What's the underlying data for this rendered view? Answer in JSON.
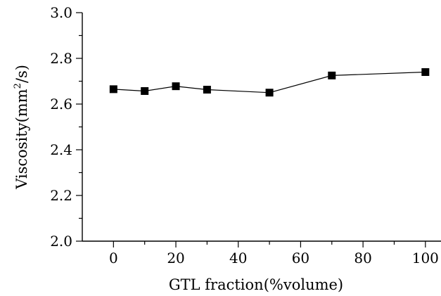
{
  "chart_data": {
    "type": "line",
    "title": "",
    "xlabel": "GTL fraction(%volume)",
    "ylabel_prefix": "Viscosity(mm",
    "ylabel_superscript": "2",
    "ylabel_suffix": "/s)",
    "xlim": [
      -10,
      105
    ],
    "ylim": [
      2.0,
      3.0
    ],
    "x_ticks": [
      0,
      20,
      40,
      60,
      80,
      100
    ],
    "x_tick_labels": [
      "0",
      "20",
      "40",
      "60",
      "80",
      "100"
    ],
    "y_ticks": [
      2.0,
      2.2,
      2.4,
      2.6,
      2.8,
      3.0
    ],
    "y_tick_labels": [
      "2.0",
      "2.2",
      "2.4",
      "2.6",
      "2.8",
      "3.0"
    ],
    "grid": false,
    "series": [
      {
        "marker": "square",
        "color": "#000000",
        "x": [
          0,
          10,
          20,
          30,
          50,
          70,
          100
        ],
        "y": [
          2.665,
          2.657,
          2.678,
          2.663,
          2.65,
          2.725,
          2.74
        ]
      }
    ]
  }
}
